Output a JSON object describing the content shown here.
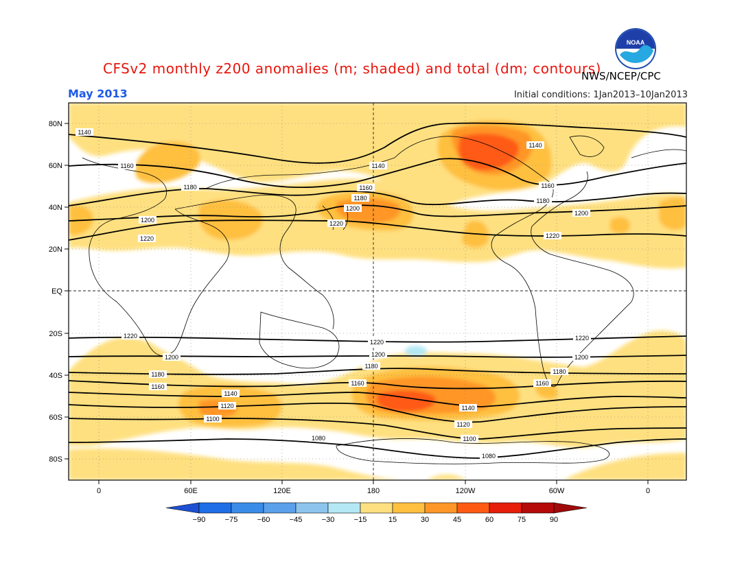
{
  "title": "CFSv2 monthly z200 anomalies (m; shaded) and total (dm; contours)",
  "valid_month": "May 2013",
  "initial_conditions": "Initial conditions: 1Jan2013–10Jan2013",
  "agency": "NWS/NCEP/CPC",
  "logo_text": "NOAA",
  "logo_icon": "noaa-logo-icon",
  "lat_labels": [
    "80N",
    "60N",
    "40N",
    "20N",
    "EQ",
    "20S",
    "40S",
    "60S",
    "80S"
  ],
  "lon_labels": [
    "0",
    "60E",
    "120E",
    "180",
    "120W",
    "60W",
    "0"
  ],
  "colorbar": {
    "labels": [
      "−90",
      "−75",
      "−60",
      "−45",
      "−30",
      "−15",
      "15",
      "30",
      "45",
      "60",
      "75",
      "90"
    ],
    "colors": [
      "#1e6ee6",
      "#3a8ce8",
      "#5aa0ea",
      "#8cc4ee",
      "#b4e8f4",
      "#ffffff",
      "#ffe080",
      "#ffc040",
      "#ff9628",
      "#ff5a14",
      "#e61e0a",
      "#b40a0a"
    ],
    "end_colors": [
      "#1e50d2",
      "#a00a0a"
    ]
  },
  "contour_labels": {
    "north": [
      "1140",
      "1160",
      "1180",
      "1200",
      "1220"
    ],
    "south": [
      "1220",
      "1200",
      "1180",
      "1160",
      "1140",
      "1120",
      "1100",
      "1080"
    ]
  },
  "colors": {
    "title": "#e8140c",
    "month": "#1d5ae8",
    "contour": "#000000",
    "land_outline": "#000000"
  }
}
